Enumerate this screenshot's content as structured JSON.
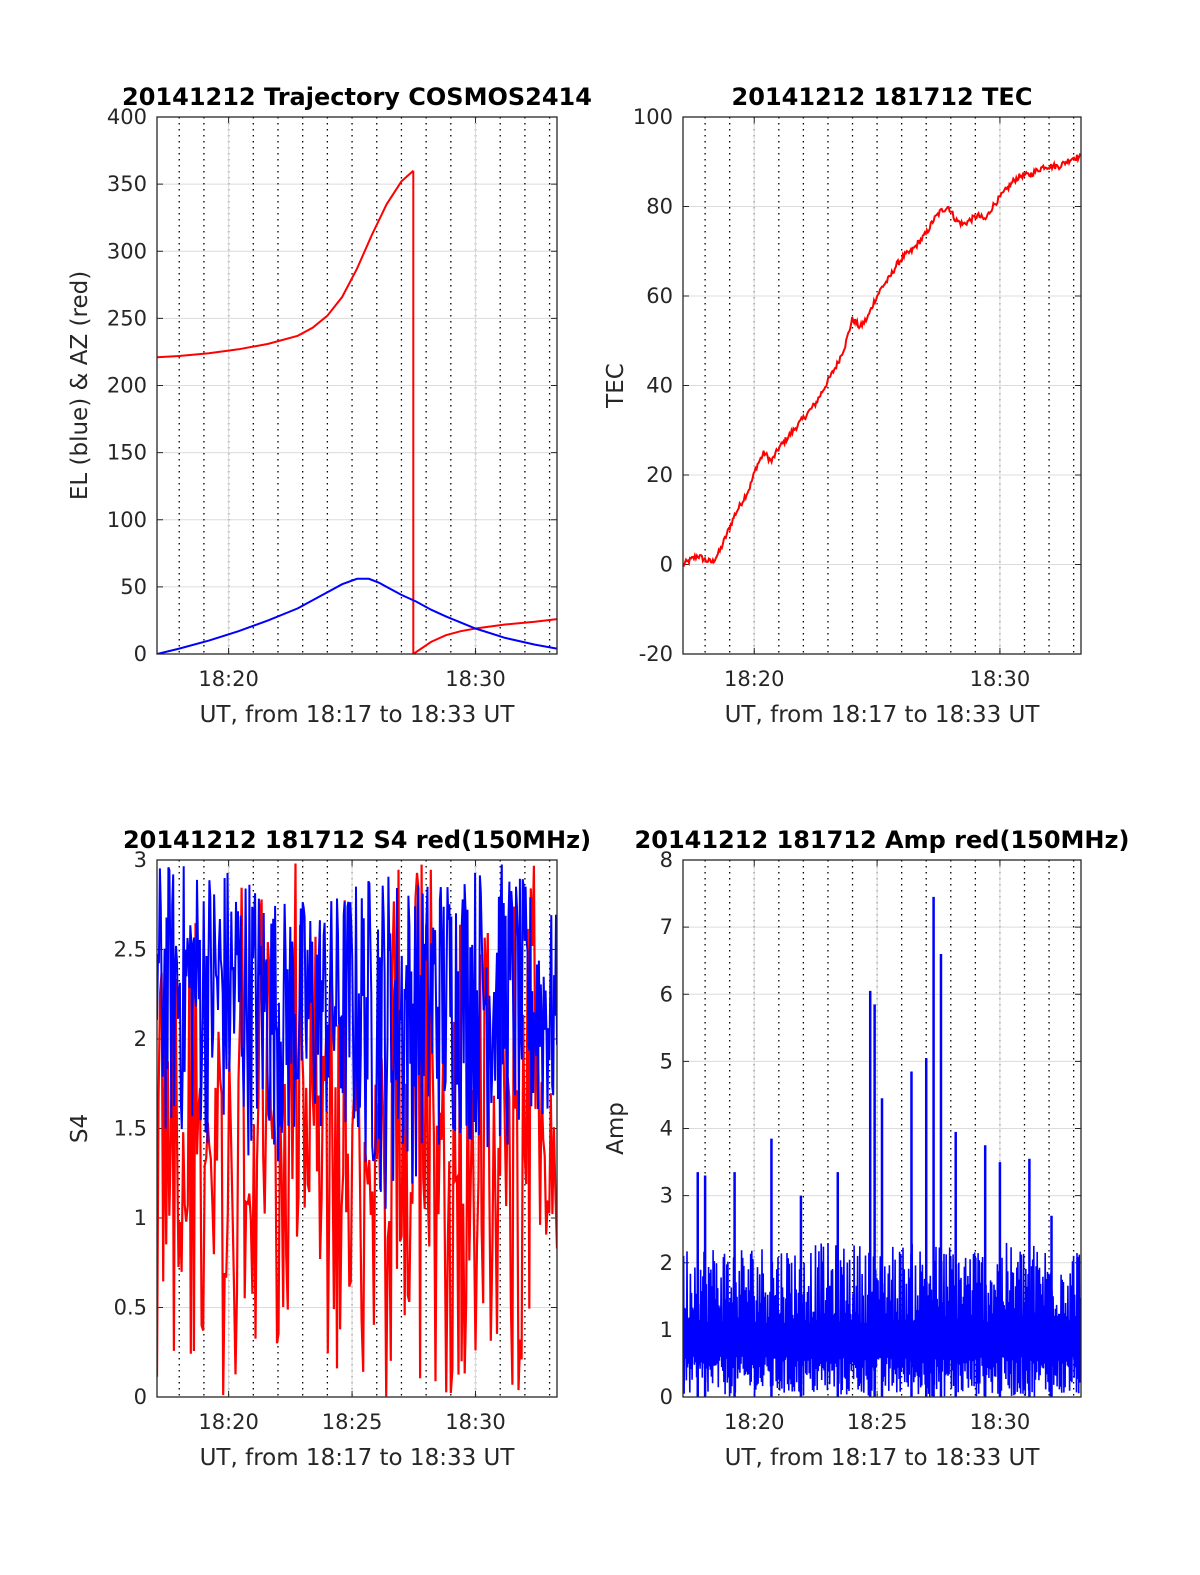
{
  "chart_data": [
    {
      "type": "line",
      "title": "20141212 Trajectory COSMOS2414",
      "xlabel": "UT, from 18:17 to 18:33 UT",
      "ylabel": "EL (blue) & AZ (red)",
      "xlim": [
        18.285,
        18.555
      ],
      "ylim": [
        0,
        400
      ],
      "xtick_labels": [
        "18:20",
        "18:30"
      ],
      "ytick_labels": [
        "0",
        "50",
        "100",
        "150",
        "200",
        "250",
        "300",
        "350",
        "400"
      ],
      "grid": true,
      "series": [
        {
          "color": "#ff0000",
          "segments": [
            {
              "x": [
                18.285,
                18.3,
                18.32,
                18.34,
                18.36,
                18.38,
                18.39,
                18.4,
                18.41,
                18.42,
                18.43,
                18.44,
                18.45,
                18.458
              ],
              "y": [
                221,
                222,
                224,
                227,
                231,
                237,
                243,
                252,
                266,
                287,
                312,
                335,
                352,
                360
              ]
            },
            {
              "x": [
                18.458,
                18.458
              ],
              "y": [
                360,
                0
              ]
            },
            {
              "x": [
                18.458,
                18.47,
                18.48,
                18.49,
                18.5,
                18.52,
                18.54,
                18.555
              ],
              "y": [
                0,
                9,
                14,
                17,
                19,
                22,
                24,
                26
              ]
            }
          ]
        },
        {
          "color": "#0000ff",
          "segments": [
            {
              "x": [
                18.285,
                18.3,
                18.32,
                18.34,
                18.36,
                18.38,
                18.4,
                18.41,
                18.42,
                18.428,
                18.435,
                18.44,
                18.45,
                18.46,
                18.47,
                18.48,
                18.5,
                18.52,
                18.54,
                18.555
              ],
              "y": [
                0,
                4,
                10,
                17,
                25,
                34,
                46,
                52,
                56,
                56,
                53,
                50,
                44,
                39,
                33,
                28,
                19,
                12,
                7,
                4
              ]
            }
          ]
        }
      ]
    },
    {
      "type": "line",
      "title": "20141212 181712 TEC",
      "xlabel": "UT, from 18:17 to 18:33 UT",
      "ylabel": "TEC",
      "xlim": [
        18.285,
        18.555
      ],
      "ylim": [
        -20,
        100
      ],
      "xtick_labels": [
        "18:20",
        "18:30"
      ],
      "ytick_labels": [
        "-20",
        "0",
        "20",
        "40",
        "60",
        "80",
        "100"
      ],
      "grid": true,
      "series": [
        {
          "color": "#ff0000",
          "segments": [
            {
              "x": [
                18.285,
                18.29,
                18.295,
                18.3,
                18.305,
                18.31,
                18.315,
                18.32,
                18.325,
                18.33,
                18.335,
                18.34,
                18.345,
                18.35,
                18.355,
                18.36,
                18.365,
                18.37,
                18.375,
                18.38,
                18.385,
                18.39,
                18.395,
                18.4,
                18.405,
                18.41,
                18.415,
                18.42,
                18.425,
                18.43,
                18.435,
                18.44,
                18.445,
                18.45,
                18.455,
                18.46,
                18.465,
                18.47,
                18.475,
                18.48,
                18.485,
                18.49,
                18.495,
                18.5,
                18.505,
                18.51,
                18.515,
                18.52,
                18.525,
                18.53,
                18.535,
                18.54,
                18.545,
                18.55,
                18.555
              ],
              "y": [
                0,
                1,
                2,
                1,
                0.5,
                3,
                7,
                11,
                14,
                17,
                22,
                25,
                23,
                26,
                28,
                30,
                32,
                34,
                36,
                39,
                42,
                45,
                49,
                55,
                53,
                55,
                59,
                62,
                64,
                67,
                69,
                70,
                72,
                74,
                77,
                79,
                80,
                77,
                76,
                77,
                78,
                77,
                80,
                82,
                84,
                86,
                87,
                87,
                88,
                89,
                89,
                89,
                90,
                91,
                91
              ]
            }
          ]
        }
      ]
    },
    {
      "type": "line",
      "title": "20141212 181712 S4 red(150MHz)",
      "xlabel": "UT, from 18:17 to 18:33 UT",
      "ylabel": "S4",
      "xlim": [
        18.285,
        18.555
      ],
      "ylim": [
        0,
        3
      ],
      "xtick_labels": [
        "18:20",
        "18:25",
        "18:30"
      ],
      "ytick_labels": [
        "0",
        "0.5",
        "1",
        "1.5",
        "2",
        "2.5",
        "3"
      ],
      "grid": true,
      "series": [
        {
          "color": "#ff0000",
          "profile": {
            "x": [
              18.285,
              18.555
            ],
            "low": [
              0,
              0
            ],
            "high": [
              3,
              3
            ]
          }
        },
        {
          "color": "#0000ff",
          "profile": {
            "x": [
              18.285,
              18.31,
              18.34,
              18.37,
              18.4,
              18.42,
              18.44,
              18.46,
              18.49,
              18.52,
              18.555
            ],
            "low": [
              1.35,
              1.4,
              1.35,
              1.3,
              1.4,
              1.3,
              1.0,
              1.2,
              1.4,
              1.3,
              1.4
            ],
            "high": [
              3,
              3,
              3,
              2.8,
              2.8,
              2.9,
              3,
              2.9,
              3,
              3,
              2.7
            ]
          }
        }
      ]
    },
    {
      "type": "line",
      "title": "20141212 181712 Amp red(150MHz)",
      "xlabel": "UT, from 18:17 to 18:33 UT",
      "ylabel": "Amp",
      "xlim": [
        18.285,
        18.555
      ],
      "ylim": [
        0,
        8
      ],
      "xtick_labels": [
        "18:20",
        "18:25",
        "18:30"
      ],
      "ytick_labels": [
        "0",
        "1",
        "2",
        "3",
        "4",
        "5",
        "6",
        "7",
        "8"
      ],
      "grid": true,
      "series": [
        {
          "color": "#0000ff",
          "baseline": {
            "x": [
              18.285,
              18.555
            ],
            "high": [
              2.0,
              2.0
            ]
          },
          "spikes": {
            "x": [
              18.295,
              18.3,
              18.32,
              18.345,
              18.365,
              18.39,
              18.412,
              18.415,
              18.42,
              18.44,
              18.45,
              18.455,
              18.46,
              18.47,
              18.49,
              18.5,
              18.52,
              18.535
            ],
            "y": [
              3.35,
              3.3,
              3.35,
              3.85,
              3.0,
              3.35,
              6.05,
              5.85,
              4.45,
              4.85,
              5.05,
              7.45,
              6.6,
              3.95,
              3.75,
              3.5,
              3.55,
              2.7
            ]
          }
        }
      ]
    }
  ]
}
